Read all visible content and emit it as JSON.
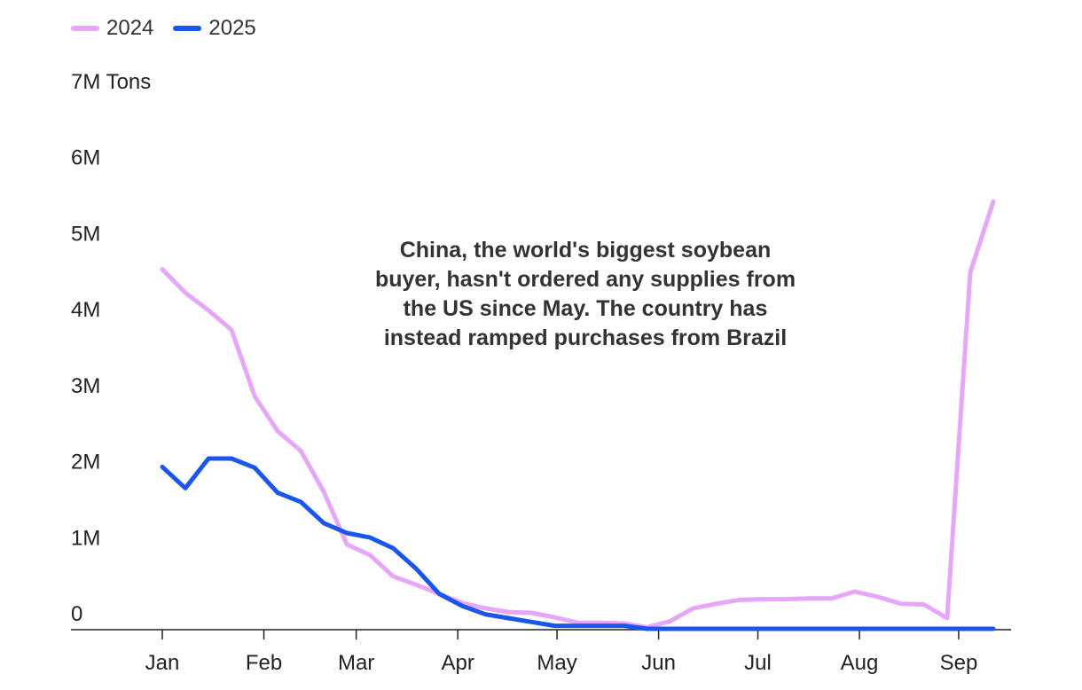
{
  "chart_data": {
    "type": "line",
    "y_unit_label": "7M Tons",
    "ylim": [
      0,
      7000000
    ],
    "y_ticks": [
      {
        "value": 0,
        "label": "0"
      },
      {
        "value": 1000000,
        "label": "1M"
      },
      {
        "value": 2000000,
        "label": "2M"
      },
      {
        "value": 3000000,
        "label": "3M"
      },
      {
        "value": 4000000,
        "label": "4M"
      },
      {
        "value": 5000000,
        "label": "5M"
      },
      {
        "value": 6000000,
        "label": "6M"
      },
      {
        "value": 7000000,
        "label": "7M Tons"
      }
    ],
    "x_unit": "week index (0 = first week of Jan)",
    "xlim": [
      0,
      36
    ],
    "x_ticks": [
      {
        "value": 0,
        "label": "Jan"
      },
      {
        "value": 4.4,
        "label": "Feb"
      },
      {
        "value": 8.4,
        "label": "Mar"
      },
      {
        "value": 12.8,
        "label": "Apr"
      },
      {
        "value": 17.1,
        "label": "May"
      },
      {
        "value": 21.5,
        "label": "Jun"
      },
      {
        "value": 25.8,
        "label": "Jul"
      },
      {
        "value": 30.2,
        "label": "Aug"
      },
      {
        "value": 34.5,
        "label": "Sep"
      }
    ],
    "series": [
      {
        "name": "2024",
        "color": "#e6a6fa",
        "values": [
          4730000,
          4420000,
          4190000,
          3930000,
          3060000,
          2600000,
          2340000,
          1800000,
          1110000,
          970000,
          690000,
          580000,
          460000,
          340000,
          270000,
          220000,
          210000,
          150000,
          80000,
          80000,
          70000,
          20000,
          100000,
          270000,
          330000,
          380000,
          390000,
          390000,
          400000,
          400000,
          490000,
          420000,
          330000,
          320000,
          140000,
          4690000,
          5620000
        ]
      },
      {
        "name": "2025",
        "color": "#1a56eb",
        "values": [
          2130000,
          1850000,
          2240000,
          2240000,
          2120000,
          1790000,
          1670000,
          1390000,
          1260000,
          1200000,
          1060000,
          790000,
          460000,
          300000,
          190000,
          140000,
          90000,
          40000,
          40000,
          40000,
          40000,
          0,
          0,
          0,
          0,
          0,
          0,
          0,
          0,
          0,
          0,
          0,
          0,
          0,
          0,
          0,
          0
        ]
      }
    ],
    "legend": [
      "2024",
      "2025"
    ],
    "legend_position": "top-left",
    "grid": false,
    "annotation": "China, the world's biggest soybean buyer, hasn't ordered any supplies from the US since May. The country has instead ramped purchases from Brazil"
  }
}
